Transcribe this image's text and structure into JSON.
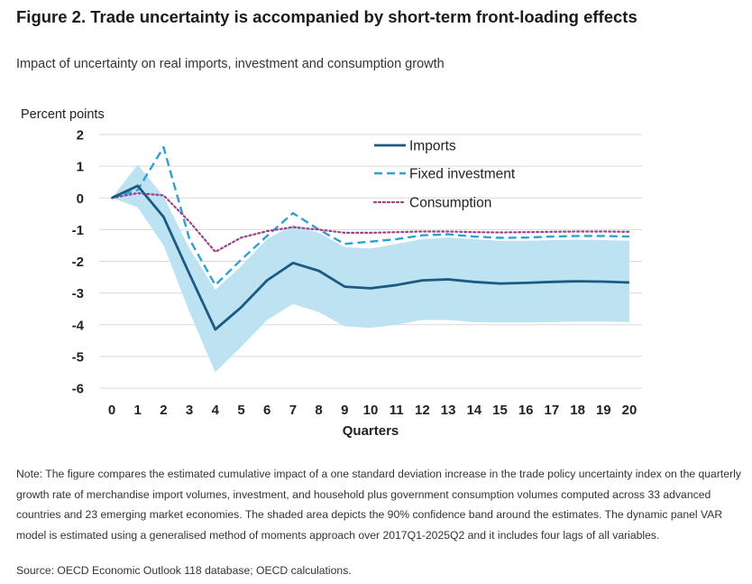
{
  "figure": {
    "title": "Figure 2. Trade uncertainty is accompanied by short-term front-loading effects",
    "subtitle": "Impact of uncertainty on real imports, investment and consumption growth",
    "note": "Note: The figure compares the estimated cumulative impact of a one standard deviation increase in the trade policy uncertainty index on the quarterly growth rate of merchandise import volumes, investment, and household plus government consumption volumes computed across 33 advanced countries and 23 emerging market economies. The shaded area depicts the 90% confidence band around the estimates. The dynamic panel VAR model is estimated using a generalised method of moments approach over 2017Q1-2025Q2 and it includes four lags of all variables.",
    "source": "Source: OECD Economic Outlook 118 database; OECD calculations."
  },
  "chart_data": {
    "type": "line",
    "ylabel": "Percent points",
    "xlabel": "Quarters",
    "x": [
      0,
      1,
      2,
      3,
      4,
      5,
      6,
      7,
      8,
      9,
      10,
      11,
      12,
      13,
      14,
      15,
      16,
      17,
      18,
      19,
      20
    ],
    "xticks": [
      "0",
      "1",
      "2",
      "3",
      "4",
      "5",
      "6",
      "7",
      "8",
      "9",
      "10",
      "11",
      "12",
      "13",
      "14",
      "15",
      "16",
      "17",
      "18",
      "19",
      "20"
    ],
    "ylim": [
      -6,
      2
    ],
    "yticks": [
      "2",
      "1",
      "0",
      "-1",
      "-2",
      "-3",
      "-4",
      "-5",
      "-6"
    ],
    "grid": "horizontal",
    "legend_position": "top-right",
    "series": [
      {
        "name": "Imports",
        "style": "solid",
        "color": "#1d5a82",
        "values": [
          0,
          0.38,
          -0.6,
          -2.4,
          -4.15,
          -3.45,
          -2.6,
          -2.05,
          -2.3,
          -2.8,
          -2.85,
          -2.75,
          -2.6,
          -2.57,
          -2.65,
          -2.7,
          -2.68,
          -2.65,
          -2.63,
          -2.64,
          -2.67
        ]
      },
      {
        "name": "Fixed investment",
        "style": "dashed",
        "color": "#2ea1d3",
        "values": [
          0,
          0.25,
          1.6,
          -1.3,
          -2.75,
          -1.95,
          -1.2,
          -0.48,
          -1.0,
          -1.45,
          -1.38,
          -1.3,
          -1.18,
          -1.15,
          -1.22,
          -1.26,
          -1.25,
          -1.22,
          -1.2,
          -1.2,
          -1.22
        ]
      },
      {
        "name": "Consumption",
        "style": "dotted",
        "color": "#a0408c",
        "values": [
          0,
          0.15,
          0.08,
          -0.75,
          -1.7,
          -1.25,
          -1.05,
          -0.92,
          -1.0,
          -1.1,
          -1.1,
          -1.08,
          -1.06,
          -1.06,
          -1.08,
          -1.09,
          -1.08,
          -1.07,
          -1.06,
          -1.06,
          -1.07
        ]
      }
    ],
    "confidence_band": {
      "description": "90% confidence band around Imports",
      "color": "#bde3f3",
      "upper": [
        0,
        1.05,
        0.05,
        -1.6,
        -2.9,
        -2.15,
        -1.3,
        -0.85,
        -1.1,
        -1.55,
        -1.6,
        -1.45,
        -1.3,
        -1.25,
        -1.3,
        -1.35,
        -1.35,
        -1.33,
        -1.32,
        -1.33,
        -1.35
      ],
      "lower": [
        0,
        -0.3,
        -1.5,
        -3.6,
        -5.5,
        -4.7,
        -3.85,
        -3.35,
        -3.6,
        -4.05,
        -4.1,
        -4.0,
        -3.85,
        -3.85,
        -3.92,
        -3.93,
        -3.93,
        -3.92,
        -3.9,
        -3.9,
        -3.92
      ]
    }
  }
}
